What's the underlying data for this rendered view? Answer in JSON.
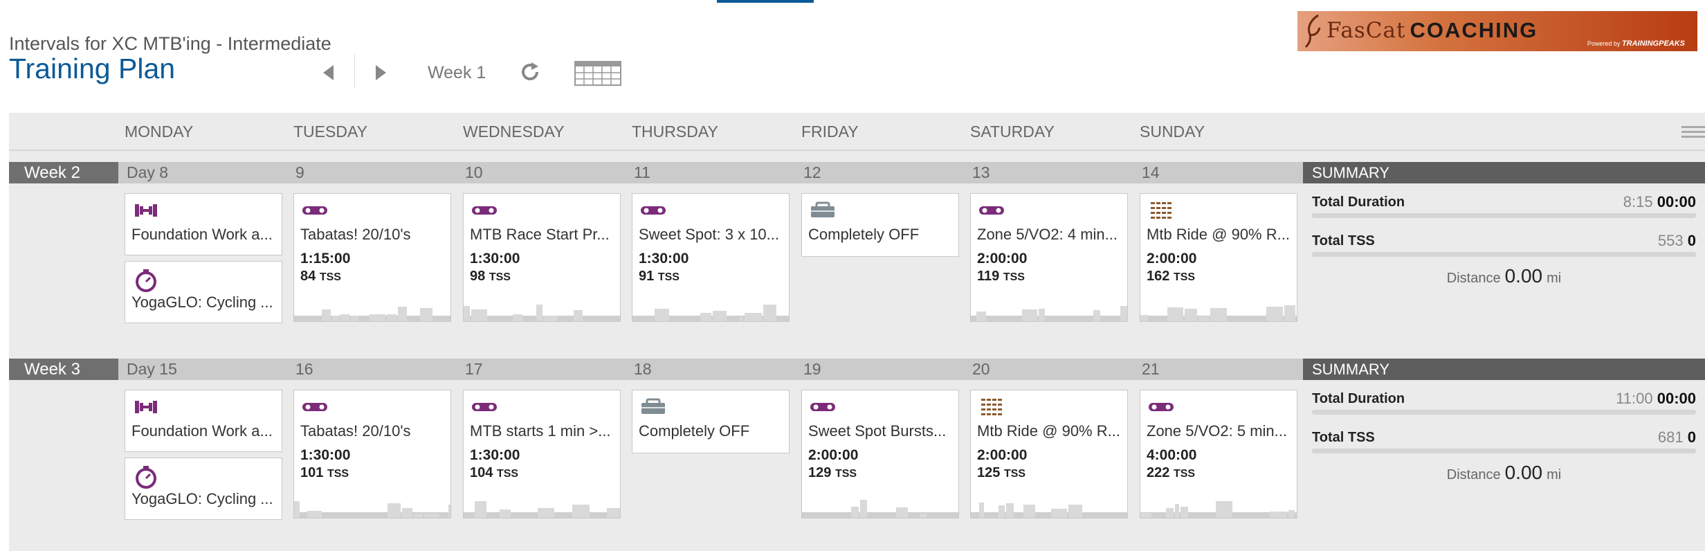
{
  "header": {
    "subtitle": "Intervals for XC MTB'ing - Intermediate",
    "title": "Training Plan",
    "week_label": "Week 1"
  },
  "logo": {
    "brand_part1": "FasCat",
    "brand_part2": "COACHING",
    "powered_by": "Powered by",
    "powered_brand": "TRAININGPEAKS"
  },
  "days_header": [
    "MONDAY",
    "TUESDAY",
    "WEDNESDAY",
    "THURSDAY",
    "FRIDAY",
    "SATURDAY",
    "SUNDAY"
  ],
  "weeks": [
    {
      "label": "Week 2",
      "days": [
        "Day 8",
        "9",
        "10",
        "11",
        "12",
        "13",
        "14"
      ],
      "workouts": [
        {
          "col": 0,
          "icon": "strength-icon",
          "name": "Foundation Work a...",
          "duration": "",
          "tss": ""
        },
        {
          "col": 0,
          "icon": "stopwatch-icon",
          "name": "YogaGLO: Cycling ...",
          "duration": "",
          "tss": ""
        },
        {
          "col": 1,
          "icon": "bike-icon",
          "name": "Tabatas! 20/10's",
          "duration": "1:15:00",
          "tss": "84"
        },
        {
          "col": 2,
          "icon": "bike-icon",
          "name": "MTB Race Start Pr...",
          "duration": "1:30:00",
          "tss": "98"
        },
        {
          "col": 3,
          "icon": "bike-icon",
          "name": "Sweet Spot: 3 x 10...",
          "duration": "1:30:00",
          "tss": "91"
        },
        {
          "col": 4,
          "icon": "day-off-icon",
          "name": "Completely OFF",
          "duration": "",
          "tss": ""
        },
        {
          "col": 5,
          "icon": "bike-icon",
          "name": "Zone 5/VO2: 4 min...",
          "duration": "2:00:00",
          "tss": "119"
        },
        {
          "col": 6,
          "icon": "mtb-icon",
          "name": "Mtb Ride @ 90% R...",
          "duration": "2:00:00",
          "tss": "162"
        }
      ],
      "summary": {
        "title": "SUMMARY",
        "duration_label": "Total Duration",
        "duration_planned": "8:15",
        "duration_done": "00:00",
        "tss_label": "Total TSS",
        "tss_planned": "553",
        "tss_done": "0",
        "distance_label": "Distance",
        "distance": "0.00",
        "distance_unit": "mi"
      }
    },
    {
      "label": "Week 3",
      "days": [
        "Day 15",
        "16",
        "17",
        "18",
        "19",
        "20",
        "21"
      ],
      "workouts": [
        {
          "col": 0,
          "icon": "strength-icon",
          "name": "Foundation Work a...",
          "duration": "",
          "tss": ""
        },
        {
          "col": 0,
          "icon": "stopwatch-icon",
          "name": "YogaGLO: Cycling ...",
          "duration": "",
          "tss": ""
        },
        {
          "col": 1,
          "icon": "bike-icon",
          "name": "Tabatas! 20/10's",
          "duration": "1:30:00",
          "tss": "101"
        },
        {
          "col": 2,
          "icon": "bike-icon",
          "name": "MTB starts 1 min >...",
          "duration": "1:30:00",
          "tss": "104"
        },
        {
          "col": 3,
          "icon": "day-off-icon",
          "name": "Completely OFF",
          "duration": "",
          "tss": ""
        },
        {
          "col": 4,
          "icon": "bike-icon",
          "name": "Sweet Spot Bursts...",
          "duration": "2:00:00",
          "tss": "129"
        },
        {
          "col": 5,
          "icon": "mtb-icon",
          "name": "Mtb Ride @ 90% R...",
          "duration": "2:00:00",
          "tss": "125"
        },
        {
          "col": 6,
          "icon": "bike-icon",
          "name": "Zone 5/VO2: 5 min...",
          "duration": "4:00:00",
          "tss": "222"
        }
      ],
      "summary": {
        "title": "SUMMARY",
        "duration_label": "Total Duration",
        "duration_planned": "11:00",
        "duration_done": "00:00",
        "tss_label": "Total TSS",
        "tss_planned": "681",
        "tss_done": "0",
        "distance_label": "Distance",
        "distance": "0.00",
        "distance_unit": "mi"
      }
    }
  ],
  "tss_unit": "TSS",
  "colors": {
    "accent": "#0b5a97",
    "workout_icon": "#7a2c79",
    "graph": "#cfcfcf"
  }
}
